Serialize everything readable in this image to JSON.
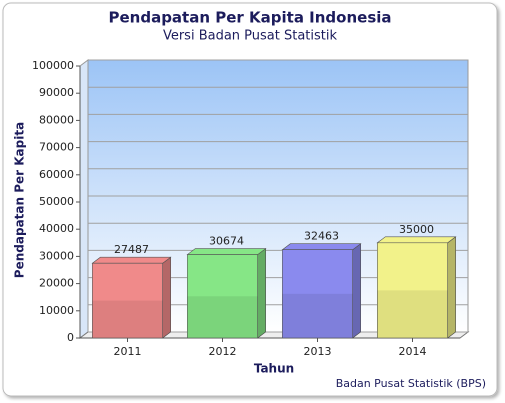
{
  "chart_data": {
    "type": "bar3d",
    "title": "Pendapatan Per Kapita Indonesia",
    "subtitle": "Versi Badan Pusat Statistik",
    "x_label": "Tahun",
    "y_label": "Pendapatan Per Kapita",
    "credit": "Badan Pusat Statistik (BPS)",
    "categories": [
      "2011",
      "2012",
      "2013",
      "2014"
    ],
    "values": [
      27487,
      30674,
      32463,
      35000
    ],
    "colors": [
      "#f08a8a",
      "#86e686",
      "#8a8aee",
      "#f2f28a"
    ],
    "ylim": [
      0,
      100000
    ],
    "yticks": [
      0,
      10000,
      20000,
      30000,
      40000,
      50000,
      60000,
      70000,
      80000,
      90000,
      100000
    ],
    "grid": true
  }
}
